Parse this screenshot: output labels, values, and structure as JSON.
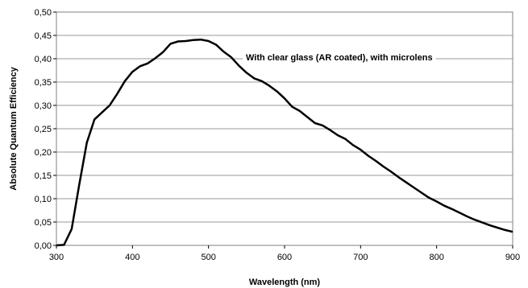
{
  "chart_data": {
    "type": "line",
    "xlabel": "Wavelength (nm)",
    "ylabel": "Absolute Quantum Efficiency",
    "xlim": [
      300,
      900
    ],
    "ylim": [
      0,
      0.5
    ],
    "grid": true,
    "xticks": [
      300,
      400,
      500,
      600,
      700,
      800,
      900
    ],
    "xtick_labels": [
      "300",
      "400",
      "500",
      "600",
      "700",
      "800",
      "900"
    ],
    "yticks": [
      0,
      0.05,
      0.1,
      0.15,
      0.2,
      0.25,
      0.3,
      0.35,
      0.4,
      0.45,
      0.5
    ],
    "ytick_labels": [
      "0,00",
      "0,05",
      "0,10",
      "0,15",
      "0,20",
      "0,25",
      "0,30",
      "0,35",
      "0,40",
      "0,45",
      "0,50"
    ],
    "annotation": "With clear glass (AR coated), with microlens",
    "series": [
      {
        "color": "#000000",
        "x": [
          300,
          310,
          320,
          330,
          340,
          350,
          360,
          370,
          380,
          390,
          400,
          410,
          420,
          430,
          440,
          450,
          460,
          470,
          480,
          490,
          500,
          510,
          520,
          530,
          540,
          550,
          560,
          570,
          580,
          590,
          600,
          610,
          620,
          630,
          640,
          650,
          660,
          670,
          680,
          690,
          700,
          710,
          720,
          730,
          740,
          750,
          760,
          770,
          780,
          790,
          800,
          810,
          820,
          830,
          840,
          850,
          860,
          870,
          880,
          890,
          900
        ],
        "y": [
          0.0,
          0.001,
          0.035,
          0.13,
          0.22,
          0.27,
          0.285,
          0.3,
          0.325,
          0.352,
          0.372,
          0.384,
          0.39,
          0.401,
          0.414,
          0.432,
          0.437,
          0.438,
          0.44,
          0.441,
          0.438,
          0.43,
          0.415,
          0.403,
          0.385,
          0.37,
          0.358,
          0.352,
          0.342,
          0.33,
          0.315,
          0.297,
          0.288,
          0.275,
          0.262,
          0.257,
          0.247,
          0.236,
          0.228,
          0.215,
          0.205,
          0.192,
          0.181,
          0.169,
          0.158,
          0.146,
          0.135,
          0.124,
          0.113,
          0.102,
          0.094,
          0.085,
          0.078,
          0.07,
          0.062,
          0.055,
          0.049,
          0.043,
          0.038,
          0.033,
          0.029
        ]
      }
    ]
  }
}
